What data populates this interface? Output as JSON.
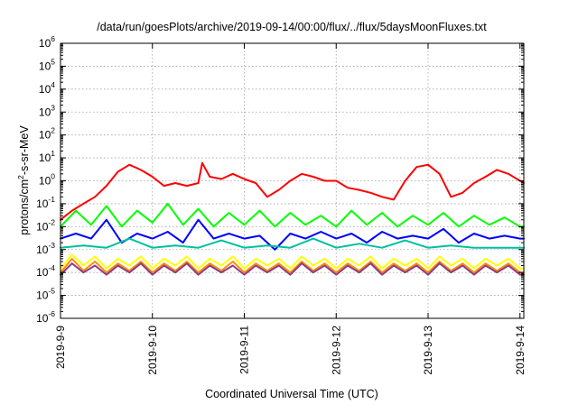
{
  "chart_data": {
    "type": "line",
    "title": "/data/run/goesPlots/archive/2019-09-14/00:00/flux/../flux/5daysMoonFluxes.txt",
    "xlabel": "Coordinated Universal Time (UTC)",
    "ylabel": {
      "pre": "protons/cm",
      "sup": "2",
      "post": "-s-sr-MeV"
    },
    "xscale": "time",
    "xlim": [
      "2019-09-09",
      "2019-09-14 01:00"
    ],
    "x_ticks": [
      "2019-9-9",
      "2019-9-10",
      "2019-9-11",
      "2019-9-12",
      "2019-9-13",
      "2019-9-14"
    ],
    "yscale": "log",
    "ylim": [
      1e-06,
      1000000.0
    ],
    "y_ticks": [
      {
        "value": 1e-06,
        "base": "10",
        "exp": "-6"
      },
      {
        "value": 1e-05,
        "base": "10",
        "exp": "-5"
      },
      {
        "value": 0.0001,
        "base": "10",
        "exp": "-4"
      },
      {
        "value": 0.001,
        "base": "10",
        "exp": "-3"
      },
      {
        "value": 0.01,
        "base": "10",
        "exp": "-2"
      },
      {
        "value": 0.1,
        "base": "10",
        "exp": "-1"
      },
      {
        "value": 1,
        "base": "10",
        "exp": "0"
      },
      {
        "value": 10,
        "base": "10",
        "exp": "1"
      },
      {
        "value": 100,
        "base": "10",
        "exp": "2"
      },
      {
        "value": 1000,
        "base": "10",
        "exp": "3"
      },
      {
        "value": 10000,
        "base": "10",
        "exp": "4"
      },
      {
        "value": 100000,
        "base": "10",
        "exp": "5"
      },
      {
        "value": 1000000,
        "base": "10",
        "exp": "6"
      }
    ],
    "grid": true,
    "legend": "none",
    "series": [
      {
        "color": "#ff0000",
        "x": [
          "2019-09-09 00:00",
          "2019-09-09 03:00",
          "2019-09-09 06:00",
          "2019-09-09 09:00",
          "2019-09-09 12:00",
          "2019-09-09 15:00",
          "2019-09-09 18:00",
          "2019-09-09 21:00",
          "2019-09-10 00:00",
          "2019-09-10 03:00",
          "2019-09-10 06:00",
          "2019-09-10 09:00",
          "2019-09-10 12:00",
          "2019-09-10 13:00",
          "2019-09-10 15:00",
          "2019-09-10 18:00",
          "2019-09-10 21:00",
          "2019-09-11 00:00",
          "2019-09-11 03:00",
          "2019-09-11 06:00",
          "2019-09-11 09:00",
          "2019-09-11 12:00",
          "2019-09-11 15:00",
          "2019-09-11 18:00",
          "2019-09-11 21:00",
          "2019-09-12 00:00",
          "2019-09-12 03:00",
          "2019-09-12 06:00",
          "2019-09-12 09:00",
          "2019-09-12 12:00",
          "2019-09-12 15:00",
          "2019-09-12 18:00",
          "2019-09-12 21:00",
          "2019-09-13 00:00",
          "2019-09-13 03:00",
          "2019-09-13 06:00",
          "2019-09-13 09:00",
          "2019-09-13 12:00",
          "2019-09-13 15:00",
          "2019-09-13 18:00",
          "2019-09-13 21:00",
          "2019-09-14 00:00",
          "2019-09-14 01:00"
        ],
        "y": [
          0.02,
          0.05,
          0.1,
          0.2,
          0.6,
          2.5,
          5,
          3,
          1.5,
          0.6,
          0.8,
          0.6,
          0.8,
          6,
          1.5,
          1.2,
          2,
          1.2,
          0.8,
          0.2,
          0.4,
          1,
          2,
          1.5,
          1,
          1,
          0.5,
          0.4,
          0.3,
          0.2,
          0.15,
          1,
          4,
          5,
          2,
          0.2,
          0.3,
          0.8,
          1.5,
          3,
          2,
          1,
          0.8
        ]
      },
      {
        "color": "#00ff00",
        "x": [
          "2019-09-09 00:00",
          "2019-09-09 04:00",
          "2019-09-09 08:00",
          "2019-09-09 12:00",
          "2019-09-09 16:00",
          "2019-09-09 20:00",
          "2019-09-10 00:00",
          "2019-09-10 04:00",
          "2019-09-10 08:00",
          "2019-09-10 12:00",
          "2019-09-10 16:00",
          "2019-09-10 20:00",
          "2019-09-11 00:00",
          "2019-09-11 04:00",
          "2019-09-11 08:00",
          "2019-09-11 12:00",
          "2019-09-11 16:00",
          "2019-09-11 20:00",
          "2019-09-12 00:00",
          "2019-09-12 04:00",
          "2019-09-12 08:00",
          "2019-09-12 12:00",
          "2019-09-12 16:00",
          "2019-09-12 20:00",
          "2019-09-13 00:00",
          "2019-09-13 04:00",
          "2019-09-13 08:00",
          "2019-09-13 12:00",
          "2019-09-13 16:00",
          "2019-09-13 20:00",
          "2019-09-14 00:00",
          "2019-09-14 01:00"
        ],
        "y": [
          0.01,
          0.05,
          0.012,
          0.08,
          0.01,
          0.05,
          0.015,
          0.1,
          0.012,
          0.06,
          0.01,
          0.04,
          0.012,
          0.05,
          0.01,
          0.04,
          0.012,
          0.03,
          0.01,
          0.05,
          0.012,
          0.04,
          0.01,
          0.03,
          0.012,
          0.04,
          0.01,
          0.03,
          0.012,
          0.025,
          0.01,
          0.01
        ]
      },
      {
        "color": "#0000ff",
        "x": [
          "2019-09-09 00:00",
          "2019-09-09 04:00",
          "2019-09-09 08:00",
          "2019-09-09 12:00",
          "2019-09-09 16:00",
          "2019-09-09 20:00",
          "2019-09-10 00:00",
          "2019-09-10 04:00",
          "2019-09-10 08:00",
          "2019-09-10 12:00",
          "2019-09-10 16:00",
          "2019-09-10 20:00",
          "2019-09-11 00:00",
          "2019-09-11 04:00",
          "2019-09-11 08:00",
          "2019-09-11 12:00",
          "2019-09-11 16:00",
          "2019-09-11 20:00",
          "2019-09-12 00:00",
          "2019-09-12 04:00",
          "2019-09-12 08:00",
          "2019-09-12 12:00",
          "2019-09-12 16:00",
          "2019-09-12 20:00",
          "2019-09-13 00:00",
          "2019-09-13 04:00",
          "2019-09-13 08:00",
          "2019-09-13 12:00",
          "2019-09-13 16:00",
          "2019-09-13 20:00",
          "2019-09-14 00:00",
          "2019-09-14 01:00"
        ],
        "y": [
          0.003,
          0.005,
          0.003,
          0.02,
          0.002,
          0.005,
          0.003,
          0.006,
          0.002,
          0.02,
          0.003,
          0.005,
          0.003,
          0.004,
          0.001,
          0.005,
          0.003,
          0.006,
          0.003,
          0.005,
          0.002,
          0.006,
          0.003,
          0.004,
          0.003,
          0.008,
          0.002,
          0.005,
          0.003,
          0.004,
          0.003,
          0.003
        ]
      },
      {
        "color": "#00c0a0",
        "x": [
          "2019-09-09 00:00",
          "2019-09-09 06:00",
          "2019-09-09 12:00",
          "2019-09-09 18:00",
          "2019-09-10 00:00",
          "2019-09-10 06:00",
          "2019-09-10 12:00",
          "2019-09-10 18:00",
          "2019-09-11 00:00",
          "2019-09-11 06:00",
          "2019-09-11 12:00",
          "2019-09-11 18:00",
          "2019-09-12 00:00",
          "2019-09-12 06:00",
          "2019-09-12 12:00",
          "2019-09-12 18:00",
          "2019-09-13 00:00",
          "2019-09-13 06:00",
          "2019-09-13 12:00",
          "2019-09-13 18:00",
          "2019-09-14 00:00",
          "2019-09-14 01:00"
        ],
        "y": [
          0.0012,
          0.0015,
          0.0012,
          0.003,
          0.0012,
          0.0015,
          0.0012,
          0.0025,
          0.0012,
          0.0015,
          0.0012,
          0.003,
          0.0012,
          0.0018,
          0.0012,
          0.0025,
          0.0012,
          0.0015,
          0.0012,
          0.0012,
          0.0012,
          0.0012
        ]
      },
      {
        "color": "#ffff00",
        "x": [
          "2019-09-09 00:00",
          "2019-09-09 03:00",
          "2019-09-09 06:00",
          "2019-09-09 09:00",
          "2019-09-09 12:00",
          "2019-09-09 15:00",
          "2019-09-09 18:00",
          "2019-09-09 21:00",
          "2019-09-10 00:00",
          "2019-09-10 03:00",
          "2019-09-10 06:00",
          "2019-09-10 09:00",
          "2019-09-10 12:00",
          "2019-09-10 15:00",
          "2019-09-10 18:00",
          "2019-09-10 21:00",
          "2019-09-11 00:00",
          "2019-09-11 03:00",
          "2019-09-11 06:00",
          "2019-09-11 09:00",
          "2019-09-11 12:00",
          "2019-09-11 15:00",
          "2019-09-11 18:00",
          "2019-09-11 21:00",
          "2019-09-12 00:00",
          "2019-09-12 03:00",
          "2019-09-12 06:00",
          "2019-09-12 09:00",
          "2019-09-12 12:00",
          "2019-09-12 15:00",
          "2019-09-12 18:00",
          "2019-09-12 21:00",
          "2019-09-13 00:00",
          "2019-09-13 03:00",
          "2019-09-13 06:00",
          "2019-09-13 09:00",
          "2019-09-13 12:00",
          "2019-09-13 15:00",
          "2019-09-13 18:00",
          "2019-09-13 21:00",
          "2019-09-14 00:00",
          "2019-09-14 01:00"
        ],
        "y": [
          0.00015,
          0.0006,
          0.0002,
          0.0005,
          0.00015,
          0.0004,
          0.0002,
          0.0005,
          0.00015,
          0.0004,
          0.0002,
          0.0005,
          0.00015,
          0.0004,
          0.0002,
          0.0005,
          0.00015,
          0.0004,
          0.0002,
          0.0004,
          0.00015,
          0.0005,
          0.0002,
          0.0004,
          0.00015,
          0.0004,
          0.0002,
          0.0005,
          0.00015,
          0.0004,
          0.0002,
          0.0004,
          0.00015,
          0.0005,
          0.0002,
          0.0004,
          0.00015,
          0.0004,
          0.0002,
          0.0004,
          0.00015,
          0.00015
        ]
      },
      {
        "color": "#ff8c00",
        "x": [
          "2019-09-09 00:00",
          "2019-09-09 03:00",
          "2019-09-09 06:00",
          "2019-09-09 09:00",
          "2019-09-09 12:00",
          "2019-09-09 15:00",
          "2019-09-09 18:00",
          "2019-09-09 21:00",
          "2019-09-10 00:00",
          "2019-09-10 03:00",
          "2019-09-10 06:00",
          "2019-09-10 09:00",
          "2019-09-10 12:00",
          "2019-09-10 15:00",
          "2019-09-10 18:00",
          "2019-09-10 21:00",
          "2019-09-11 00:00",
          "2019-09-11 03:00",
          "2019-09-11 06:00",
          "2019-09-11 09:00",
          "2019-09-11 12:00",
          "2019-09-11 15:00",
          "2019-09-11 18:00",
          "2019-09-11 21:00",
          "2019-09-12 00:00",
          "2019-09-12 03:00",
          "2019-09-12 06:00",
          "2019-09-12 09:00",
          "2019-09-12 12:00",
          "2019-09-12 15:00",
          "2019-09-12 18:00",
          "2019-09-12 21:00",
          "2019-09-13 00:00",
          "2019-09-13 03:00",
          "2019-09-13 06:00",
          "2019-09-13 09:00",
          "2019-09-13 12:00",
          "2019-09-13 15:00",
          "2019-09-13 18:00",
          "2019-09-13 21:00",
          "2019-09-14 00:00",
          "2019-09-14 01:00"
        ],
        "y": [
          0.0001,
          0.0004,
          0.00012,
          0.0003,
          0.0001,
          0.00025,
          0.00012,
          0.0003,
          0.0001,
          0.00025,
          0.00012,
          0.0003,
          0.0001,
          0.00025,
          0.00012,
          0.0003,
          0.0001,
          0.00025,
          0.00012,
          0.00025,
          0.0001,
          0.0003,
          0.00012,
          0.00025,
          0.0001,
          0.00025,
          0.00012,
          0.0003,
          0.0001,
          0.00025,
          0.00012,
          0.00025,
          0.0001,
          0.0003,
          0.00012,
          0.00025,
          0.0001,
          0.00025,
          0.00012,
          0.00025,
          0.0001,
          0.0001
        ]
      },
      {
        "color": "#8b3a8b",
        "x": [
          "2019-09-09 00:00",
          "2019-09-09 03:00",
          "2019-09-09 06:00",
          "2019-09-09 09:00",
          "2019-09-09 12:00",
          "2019-09-09 15:00",
          "2019-09-09 18:00",
          "2019-09-09 21:00",
          "2019-09-10 00:00",
          "2019-09-10 03:00",
          "2019-09-10 06:00",
          "2019-09-10 09:00",
          "2019-09-10 12:00",
          "2019-09-10 15:00",
          "2019-09-10 18:00",
          "2019-09-10 21:00",
          "2019-09-11 00:00",
          "2019-09-11 03:00",
          "2019-09-11 06:00",
          "2019-09-11 09:00",
          "2019-09-11 12:00",
          "2019-09-11 15:00",
          "2019-09-11 18:00",
          "2019-09-11 21:00",
          "2019-09-12 00:00",
          "2019-09-12 03:00",
          "2019-09-12 06:00",
          "2019-09-12 09:00",
          "2019-09-12 12:00",
          "2019-09-12 15:00",
          "2019-09-12 18:00",
          "2019-09-12 21:00",
          "2019-09-13 00:00",
          "2019-09-13 03:00",
          "2019-09-13 06:00",
          "2019-09-13 09:00",
          "2019-09-13 12:00",
          "2019-09-13 15:00",
          "2019-09-13 18:00",
          "2019-09-13 21:00",
          "2019-09-14 00:00",
          "2019-09-14 01:00"
        ],
        "y": [
          8e-05,
          0.00025,
          0.0001,
          0.0002,
          8e-05,
          0.0002,
          0.0001,
          0.00025,
          8e-05,
          0.0002,
          0.0001,
          0.00025,
          8e-05,
          0.0002,
          0.0001,
          0.0002,
          8e-05,
          0.0002,
          0.0001,
          0.0002,
          8e-05,
          0.00025,
          0.0001,
          0.0002,
          8e-05,
          0.0002,
          0.0001,
          0.00025,
          8e-05,
          0.0002,
          0.0001,
          0.0002,
          8e-05,
          0.00025,
          0.0001,
          0.0002,
          8e-05,
          0.0002,
          0.0001,
          0.0002,
          8e-05,
          8e-05
        ]
      }
    ]
  }
}
